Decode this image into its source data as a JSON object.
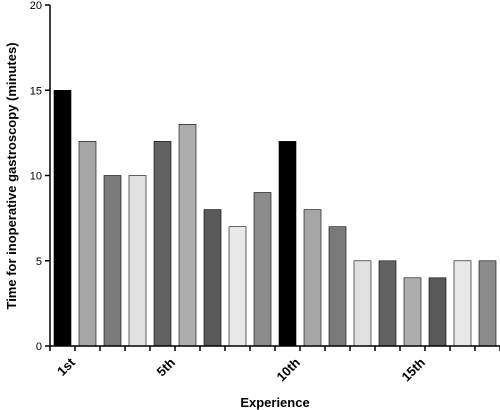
{
  "chart_data": {
    "type": "bar",
    "title": "",
    "xlabel": "Experience",
    "ylabel": "Time for inoperative gastroscopy (minutes)",
    "ylim": [
      0,
      20
    ],
    "yticks": [
      0,
      5,
      10,
      15,
      20
    ],
    "categories": [
      "1",
      "2",
      "3",
      "4",
      "5",
      "6",
      "7",
      "8",
      "9",
      "10",
      "11",
      "12",
      "13",
      "14",
      "15",
      "16",
      "17",
      "18"
    ],
    "values": [
      15,
      12,
      10,
      10,
      12,
      13,
      8,
      7,
      9,
      12,
      8,
      7,
      5,
      5,
      4,
      4,
      5,
      5
    ],
    "colors": [
      "#000000",
      "#a6a6a6",
      "#7a7a7a",
      "#e1e1e1",
      "#626262",
      "#adadad",
      "#595959",
      "#e8e8e8",
      "#8c8c8c",
      "#000000",
      "#a6a6a6",
      "#7a7a7a",
      "#e1e1e1",
      "#626262",
      "#adadad",
      "#595959",
      "#e8e8e8",
      "#8c8c8c"
    ],
    "xtick_labels": [
      {
        "index": 0,
        "text": "1st"
      },
      {
        "index": 4,
        "text": "5th"
      },
      {
        "index": 9,
        "text": "10th"
      },
      {
        "index": 14,
        "text": "15th"
      }
    ],
    "grid": false,
    "legend": "none"
  }
}
